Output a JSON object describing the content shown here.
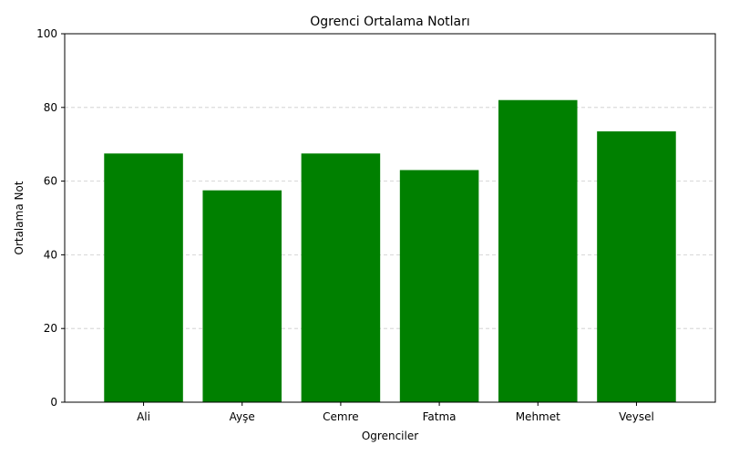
{
  "chart_data": {
    "type": "bar",
    "title": "Ogrenci Ortalama Notları",
    "xlabel": "Ogrenciler",
    "ylabel": "Ortalama Not",
    "categories": [
      "Ali",
      "Ayşe",
      "Cemre",
      "Fatma",
      "Mehmet",
      "Veysel"
    ],
    "values": [
      67.5,
      57.5,
      67.5,
      63.0,
      82.0,
      73.5
    ],
    "ylim": [
      0,
      100
    ],
    "yticks": [
      "0",
      "20",
      "40",
      "60",
      "80",
      "100"
    ],
    "grid": "y-dashed",
    "bar_color": "#008000",
    "legend": "none"
  }
}
